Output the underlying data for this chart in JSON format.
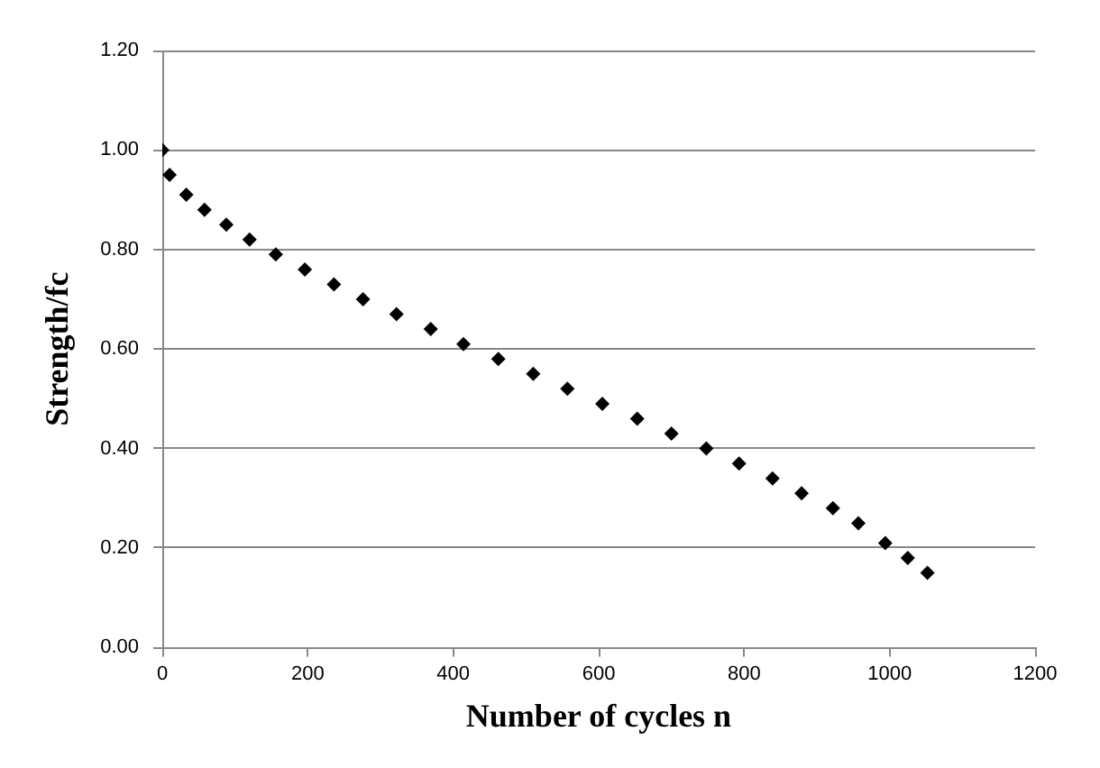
{
  "chart_data": {
    "type": "scatter",
    "xlabel": "Number of cycles n",
    "ylabel": "Strength/fc",
    "x": [
      0,
      10,
      33,
      58,
      88,
      120,
      156,
      196,
      236,
      276,
      322,
      369,
      414,
      462,
      510,
      557,
      605,
      653,
      700,
      748,
      793,
      839,
      879,
      922,
      957,
      994,
      1025,
      1052
    ],
    "series": [
      {
        "color": "#000000",
        "values": [
          1.0,
          0.95,
          0.91,
          0.88,
          0.85,
          0.82,
          0.79,
          0.76,
          0.73,
          0.7,
          0.67,
          0.64,
          0.61,
          0.58,
          0.55,
          0.52,
          0.49,
          0.46,
          0.43,
          0.4,
          0.37,
          0.34,
          0.31,
          0.28,
          0.25,
          0.21,
          0.18,
          0.15
        ]
      }
    ],
    "xlim": [
      0,
      1200
    ],
    "xticks": [
      0,
      200,
      400,
      600,
      800,
      1000,
      1200
    ],
    "ylim": [
      0,
      1.2
    ],
    "yticks": [
      {
        "value": 0,
        "label": "0.00"
      },
      {
        "value": 0.2,
        "label": "0.20"
      },
      {
        "value": 0.4,
        "label": "0.40"
      },
      {
        "value": 0.6,
        "label": "0.60"
      },
      {
        "value": 0.8,
        "label": "0.80"
      },
      {
        "value": 1.0,
        "label": "1.00"
      },
      {
        "value": 1.2,
        "label": "1.20"
      }
    ],
    "grid": "y",
    "legend": false,
    "marker": "diamond"
  }
}
